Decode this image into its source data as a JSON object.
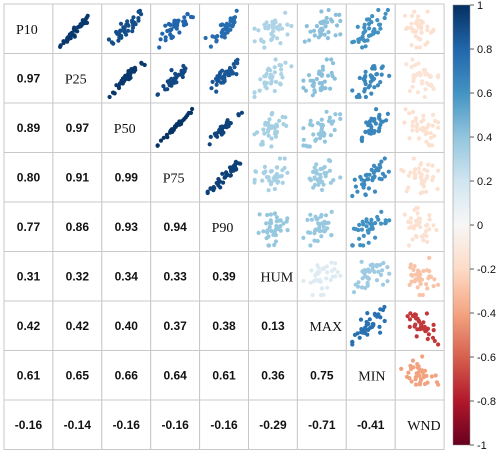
{
  "chart_data": {
    "type": "correlation-matrix",
    "variables": [
      "P10",
      "P25",
      "P50",
      "P75",
      "P90",
      "HUM",
      "MAX",
      "MIN",
      "WND"
    ],
    "lower_triangle_values": [
      [],
      [
        "0.97"
      ],
      [
        "0.89",
        "0.97"
      ],
      [
        "0.80",
        "0.91",
        "0.99"
      ],
      [
        "0.77",
        "0.86",
        "0.93",
        "0.94"
      ],
      [
        "0.31",
        "0.32",
        "0.34",
        "0.33",
        "0.39"
      ],
      [
        "0.42",
        "0.42",
        "0.40",
        "0.37",
        "0.38",
        "0.13"
      ],
      [
        "0.61",
        "0.65",
        "0.66",
        "0.64",
        "0.61",
        "0.36",
        "0.75"
      ],
      [
        "-0.16",
        "-0.14",
        "-0.16",
        "-0.16",
        "-0.16",
        "-0.29",
        "-0.71",
        "-0.41"
      ]
    ],
    "upper_triangle": "scatter plots of each variable pair, point colour mapped to the pair's correlation",
    "colorbar": {
      "min": -1,
      "max": 1,
      "ticks": [
        "1",
        "0.8",
        "0.6",
        "0.4",
        "0.2",
        "0",
        "-0.2",
        "-0.4",
        "-0.6",
        "-0.8",
        "-1"
      ],
      "stops": [
        {
          "value": -1.0,
          "color": "#67001f"
        },
        {
          "value": -0.8,
          "color": "#b2182b"
        },
        {
          "value": -0.6,
          "color": "#d6604d"
        },
        {
          "value": -0.4,
          "color": "#f4a582"
        },
        {
          "value": -0.2,
          "color": "#fddbc7"
        },
        {
          "value": 0.0,
          "color": "#f7f7f7"
        },
        {
          "value": 0.2,
          "color": "#d1e5f0"
        },
        {
          "value": 0.4,
          "color": "#92c5de"
        },
        {
          "value": 0.6,
          "color": "#4393c3"
        },
        {
          "value": 0.8,
          "color": "#2166ac"
        },
        {
          "value": 1.0,
          "color": "#053061"
        }
      ]
    }
  }
}
